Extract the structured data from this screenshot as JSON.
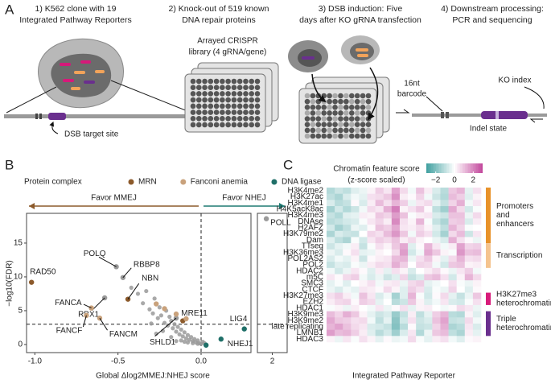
{
  "workflow": {
    "panel_label": "A",
    "steps": [
      {
        "title": [
          "1) K562 clone with 19",
          "Integrated Pathway Reporters"
        ],
        "labels": [
          "DSB target site"
        ]
      },
      {
        "title": [
          "2) Knock-out of 519 known",
          "DNA repair proteins"
        ],
        "labels": [
          "Arrayed CRISPR",
          "library (4 gRNA/gene)"
        ]
      },
      {
        "title": [
          "3) DSB induction: Five",
          "days after KO gRNA transfection"
        ]
      },
      {
        "title": [
          "4) Downstream processing:",
          "PCR and sequencing"
        ],
        "labels": [
          "16nt",
          "barcode",
          "KO index",
          "Indel state"
        ]
      }
    ]
  },
  "chart_data": [
    {
      "type": "scatter",
      "panel_label": "B",
      "legend_title": "Protein complex",
      "xlabel": "Global Δlog2MMEJ:NHEJ score",
      "ylabel": "−log10(FDR)",
      "annotations": [
        {
          "text": "Favor MMEJ",
          "color": "#8c5a2b",
          "direction": "left"
        },
        {
          "text": "Favor NHEJ",
          "color": "#1f7a72",
          "direction": "right"
        }
      ],
      "xlim": [
        -1.05,
        0.3
      ],
      "xticks": [
        {
          "value": -1,
          "label": "-1.0"
        },
        {
          "value": -0.5,
          "label": "-0.5"
        },
        {
          "value": 0,
          "label": "0.0"
        }
      ],
      "x2lim": [
        1.6,
        2.4
      ],
      "x2ticks": [
        2
      ],
      "ylim": [
        -1.2,
        19.4
      ],
      "yticks": [
        0,
        5,
        10,
        15
      ],
      "hline": 3,
      "vline": 0,
      "series": [
        {
          "color": "#9a9a9a",
          "x": [
            -0.42,
            -0.38,
            -0.35,
            -0.33,
            -0.31,
            -0.29,
            -0.28,
            -0.26,
            -0.25,
            -0.24,
            -0.22,
            -0.21,
            -0.2,
            -0.19,
            -0.18,
            -0.17,
            -0.16,
            -0.15,
            -0.14,
            -0.13,
            -0.12,
            -0.11,
            -0.1,
            -0.09,
            -0.08,
            -0.07,
            -0.06,
            -0.05,
            -0.04,
            -0.03,
            -0.02,
            -0.01,
            0.0,
            0.01,
            0.02,
            -0.3,
            -0.23,
            -0.18,
            -0.12,
            -0.08,
            -0.05,
            -0.02,
            -0.27,
            -0.15,
            -0.1
          ],
          "y": [
            8.4,
            7.5,
            6.1,
            7.9,
            5.2,
            4.6,
            6.8,
            3.9,
            5.5,
            4.3,
            3.2,
            5.0,
            2.8,
            4.1,
            3.5,
            2.4,
            3.0,
            1.9,
            2.6,
            1.5,
            2.2,
            1.2,
            1.8,
            0.9,
            1.4,
            0.7,
            1.1,
            0.5,
            0.8,
            0.3,
            0.6,
            0.2,
            0.1,
            0.4,
            0.2,
            3.1,
            2.0,
            1.1,
            0.6,
            0.3,
            0.2,
            0.1,
            1.6,
            0.5,
            0.4
          ]
        },
        {
          "color": "#9a9a9a",
          "labels": [
            "POLQ",
            "RBBP8",
            "RBX1",
            "SHLD1",
            "POLL"
          ],
          "x": [
            -0.51,
            -0.47,
            -0.58,
            -0.15,
            1.84
          ],
          "y": [
            11.5,
            9.9,
            6.9,
            3.9,
            18.6
          ]
        },
        {
          "name": "MRN",
          "color": "#8c5a2b",
          "labels": [
            "RAD50",
            "NBN",
            "MRE11"
          ],
          "x": [
            -1.02,
            -0.44,
            -0.11
          ],
          "y": [
            9.2,
            6.7,
            3.5
          ]
        },
        {
          "name": "Fanconi anemia",
          "color": "#c9a27c",
          "labels": [
            "FANCA",
            "FANCF",
            "FANCM",
            null,
            null,
            null,
            null
          ],
          "x": [
            -0.66,
            -0.69,
            -0.61,
            -0.27,
            -0.22,
            -0.15,
            -0.09
          ],
          "y": [
            5.4,
            4.3,
            3.9,
            6.0,
            5.3,
            4.5,
            3.8
          ]
        },
        {
          "name": "DNA ligase",
          "color": "#1f6f68",
          "labels": [
            "LIG4",
            "NHEJ1",
            null
          ],
          "x": [
            0.26,
            0.12,
            0.03
          ],
          "y": [
            2.3,
            0.8,
            -0.1
          ]
        }
      ]
    },
    {
      "type": "heatmap",
      "panel_label": "C",
      "title": [
        "Chromatin feature score",
        "(z-score scaled)"
      ],
      "xlabel": "Integrated Pathway Reporter",
      "clim": [
        -3,
        3
      ],
      "cticks": [
        {
          "value": -2,
          "label": "−2"
        },
        0,
        2
      ],
      "colors": {
        "low": "#3f9f9f",
        "mid": "#ffffff",
        "high": "#c2479c"
      },
      "rows": [
        "H3K4me2",
        "H3K27ac",
        "H3K4me1",
        "H4K5acK8ac",
        "H3K4me3",
        "DNAse",
        "H2AFZ",
        "H3K79me2",
        "Dam",
        "TTseq",
        "H3K36me3",
        "POL2AS2",
        "POL2",
        "HDAC2",
        "m5C",
        "SMC3",
        "CTCF",
        "H3K27me3",
        "EZH2",
        "HDAC1",
        "H3K9me3",
        "H3K9me2",
        "late replicating",
        "LMNB1",
        "HDAC3"
      ],
      "row_colors": [
        "#e8922a",
        "#e8922a",
        "#e8922a",
        "#e8922a",
        "#e8922a",
        "#e8922a",
        "#e8922a",
        "#e8922a",
        "#e8922a",
        "#f5c48f",
        "#f5c48f",
        "#f5c48f",
        "#f5c48f",
        "#555555",
        "#555555",
        "#555555",
        "#555555",
        "#d81b7a",
        "#d81b7a",
        "#555555",
        "#6a2f8e",
        "#6a2f8e",
        "#6a2f8e",
        "#6a2f8e",
        "#555555"
      ],
      "groups": [
        {
          "lines": [
            "Promoters",
            "and",
            "enhancers"
          ],
          "color": "#e8922a"
        },
        {
          "lines": [
            "Transcription"
          ],
          "color": "#f5c48f"
        },
        {
          "lines": [
            "H3K27me3",
            "heterochromatin"
          ],
          "color": "#d81b7a"
        },
        {
          "lines": [
            "Triple",
            "heterochromatin"
          ],
          "color": "#6a2f8e"
        }
      ],
      "values": [
        [
          -1.2,
          -0.8,
          -1.0,
          -0.5,
          -0.3,
          0.2,
          0.8,
          0.4,
          1.5,
          0.6,
          -0.2,
          1.0,
          0.3,
          -0.6,
          -1.1,
          0.9,
          1.2,
          -0.4,
          0.5
        ],
        [
          -1.0,
          -1.3,
          -0.6,
          -0.2,
          -0.4,
          0.5,
          0.6,
          0.9,
          1.8,
          0.3,
          0.1,
          0.7,
          -0.2,
          -0.8,
          -1.2,
          1.1,
          0.8,
          -0.5,
          0.2
        ],
        [
          -0.6,
          -1.1,
          -0.9,
          0.1,
          -0.6,
          0.3,
          1.1,
          0.5,
          1.2,
          0.8,
          -0.3,
          0.4,
          0.6,
          -0.4,
          -0.9,
          0.7,
          1.3,
          -0.2,
          0.4
        ],
        [
          -1.4,
          -0.7,
          -1.2,
          -0.8,
          -0.2,
          0.6,
          0.4,
          1.3,
          2.1,
          0.2,
          0.5,
          0.9,
          0.1,
          -1.0,
          -1.5,
          1.4,
          0.6,
          -0.7,
          -0.1
        ],
        [
          -0.9,
          -1.2,
          -0.5,
          -0.4,
          0.3,
          0.2,
          0.9,
          0.7,
          1.6,
          1.0,
          -0.1,
          0.3,
          0.4,
          -0.6,
          -0.8,
          1.0,
          1.0,
          -0.3,
          0.6
        ],
        [
          -1.1,
          -0.9,
          -0.7,
          -0.6,
          -0.1,
          0.4,
          0.7,
          0.3,
          1.9,
          0.5,
          0.2,
          1.2,
          -0.1,
          -0.9,
          -1.3,
          0.8,
          0.9,
          -0.6,
          0.3
        ],
        [
          -0.7,
          -1.4,
          -1.0,
          -0.3,
          -0.5,
          0.1,
          1.0,
          0.8,
          1.4,
          0.4,
          0.3,
          0.6,
          0.2,
          -0.5,
          -1.0,
          1.2,
          0.7,
          -0.1,
          0.0
        ],
        [
          -1.3,
          -0.6,
          -0.8,
          -0.9,
          0.0,
          0.7,
          0.5,
          1.1,
          1.7,
          0.9,
          -0.2,
          0.8,
          0.5,
          -0.7,
          -1.4,
          0.6,
          1.1,
          -0.8,
          0.4
        ],
        [
          -0.5,
          -1.0,
          -1.3,
          -0.1,
          -0.7,
          0.4,
          0.8,
          0.6,
          1.0,
          0.3,
          0.6,
          0.2,
          0.0,
          -0.3,
          -0.6,
          1.3,
          0.5,
          0.1,
          -0.3
        ],
        [
          -0.8,
          -0.4,
          -0.2,
          0.3,
          -0.9,
          -0.1,
          0.5,
          0.2,
          0.9,
          1.4,
          -0.5,
          0.1,
          1.2,
          0.4,
          -0.2,
          0.3,
          1.5,
          0.7,
          0.8
        ],
        [
          -0.3,
          -0.6,
          0.1,
          0.5,
          -0.4,
          -0.3,
          0.2,
          0.0,
          0.6,
          1.6,
          -0.7,
          -0.2,
          1.4,
          0.9,
          0.2,
          -0.1,
          1.7,
          1.0,
          1.1
        ],
        [
          -0.6,
          -0.2,
          -0.4,
          0.2,
          -0.8,
          0.1,
          0.3,
          0.4,
          1.1,
          1.2,
          -0.3,
          0.5,
          0.9,
          0.2,
          -0.4,
          0.6,
          1.2,
          0.5,
          0.6
        ],
        [
          -0.9,
          -0.5,
          -0.6,
          -0.1,
          -0.3,
          0.3,
          0.6,
          0.5,
          1.3,
          0.8,
          0.0,
          0.7,
          0.6,
          -0.2,
          -0.7,
          0.9,
          1.0,
          0.2,
          0.3
        ],
        [
          -0.2,
          -0.7,
          -0.3,
          0.4,
          0.1,
          -0.5,
          0.3,
          -0.4,
          0.5,
          0.2,
          -0.6,
          0.0,
          0.3,
          0.6,
          0.1,
          -0.3,
          0.4,
          0.8,
          -0.2
        ],
        [
          0.4,
          0.1,
          0.6,
          0.8,
          -0.2,
          -0.6,
          -0.3,
          -0.8,
          -0.5,
          0.7,
          -0.9,
          -0.6,
          0.9,
          1.1,
          0.5,
          -0.7,
          0.2,
          1.2,
          0.6
        ],
        [
          -0.4,
          -0.1,
          -0.5,
          0.0,
          0.2,
          0.5,
          -0.2,
          0.3,
          0.4,
          -0.3,
          0.6,
          0.8,
          -0.4,
          -0.2,
          0.0,
          0.5,
          -0.1,
          -0.3,
          0.2
        ],
        [
          -0.3,
          -0.6,
          -0.2,
          -0.4,
          0.4,
          0.3,
          0.1,
          0.6,
          0.2,
          -0.5,
          0.8,
          0.5,
          -0.6,
          -0.1,
          -0.3,
          0.7,
          0.0,
          -0.5,
          0.1
        ],
        [
          0.5,
          0.8,
          0.3,
          -0.2,
          1.0,
          0.4,
          -0.6,
          -0.2,
          -1.4,
          -0.5,
          1.2,
          -0.1,
          -0.7,
          0.1,
          0.6,
          -0.4,
          -0.9,
          -0.3,
          0.9
        ],
        [
          0.3,
          0.6,
          0.7,
          0.1,
          0.8,
          0.6,
          -0.4,
          0.0,
          -1.1,
          -0.8,
          0.9,
          0.2,
          -0.5,
          -0.2,
          0.4,
          -0.6,
          -0.7,
          -0.1,
          0.5
        ],
        [
          -0.1,
          0.2,
          -0.3,
          0.3,
          0.0,
          -0.2,
          0.4,
          -0.3,
          0.1,
          0.5,
          -0.4,
          0.2,
          0.3,
          0.0,
          -0.2,
          0.1,
          0.6,
          0.4,
          -0.3
        ],
        [
          1.1,
          0.7,
          1.3,
          0.9,
          0.2,
          -0.4,
          -0.8,
          -0.6,
          -1.6,
          -0.9,
          0.3,
          -1.0,
          -0.4,
          0.8,
          1.2,
          -1.1,
          -1.2,
          0.2,
          -0.5
        ],
        [
          1.4,
          0.9,
          0.8,
          0.5,
          0.6,
          -0.2,
          -1.0,
          -0.4,
          -1.8,
          -0.7,
          0.5,
          -0.8,
          -0.6,
          1.0,
          1.5,
          -0.9,
          -0.8,
          0.6,
          -0.2
        ],
        [
          1.2,
          1.5,
          1.0,
          0.6,
          0.4,
          -0.6,
          -0.7,
          -0.9,
          -1.9,
          -1.1,
          0.1,
          -0.9,
          -0.8,
          0.7,
          1.3,
          -1.3,
          -1.1,
          0.4,
          -0.6
        ],
        [
          1.6,
          1.1,
          1.2,
          0.8,
          0.3,
          -0.5,
          -1.1,
          -0.7,
          -1.5,
          -0.6,
          0.4,
          -1.2,
          -0.3,
          0.9,
          1.1,
          -1.0,
          -1.3,
          0.3,
          -0.4
        ],
        [
          0.2,
          -0.3,
          0.4,
          -0.1,
          0.5,
          0.2,
          -0.4,
          0.1,
          -0.3,
          -0.2,
          0.6,
          -0.1,
          -0.4,
          0.3,
          0.5,
          -0.2,
          -0.5,
          0.1,
          0.2
        ]
      ]
    }
  ]
}
